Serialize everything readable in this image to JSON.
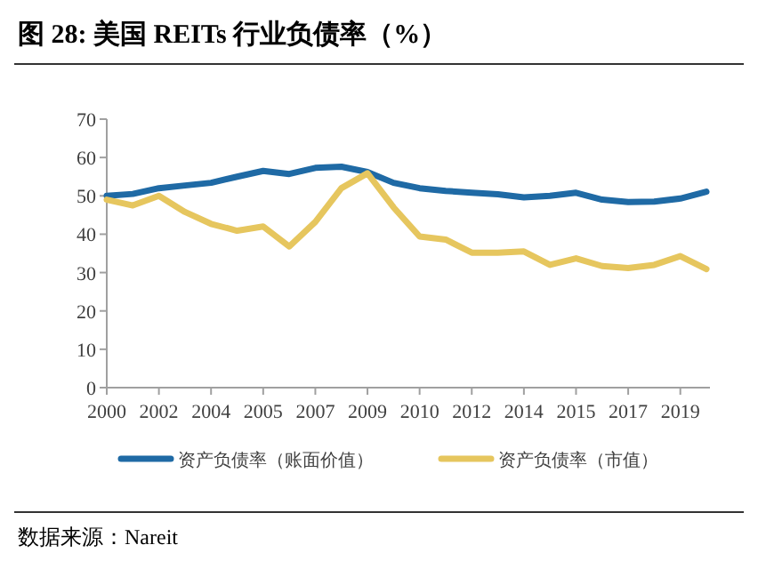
{
  "chart_data": {
    "type": "line",
    "title": "图 28:  美国 REITs 行业负债率（%）",
    "categories": [
      "2000",
      null,
      "2002",
      null,
      "2004",
      null,
      "2005",
      null,
      "2007",
      null,
      "2009",
      null,
      "2010",
      null,
      "2012",
      null,
      "2014",
      null,
      "2015",
      null,
      "2017",
      null,
      "2019",
      null
    ],
    "series": [
      {
        "name": "资产负债率（账面价值）",
        "color": "#1f6aa5",
        "values": [
          50,
          50.5,
          52,
          52.7,
          53.4,
          55,
          56.5,
          55.7,
          57.3,
          57.6,
          56.2,
          53.4,
          52,
          51.3,
          50.8,
          50.4,
          49.6,
          50,
          50.8,
          49,
          48.4,
          48.5,
          49.3,
          51.1
        ]
      },
      {
        "name": "资产负债率（市值）",
        "color": "#e6c65e",
        "values": [
          49,
          47.5,
          50,
          45.8,
          42.7,
          40.9,
          42,
          36.8,
          43.2,
          52,
          55.9,
          47,
          39.4,
          38.6,
          35.2,
          35.2,
          35.5,
          32,
          33.7,
          31.7,
          31.2,
          32,
          34.3,
          30.9
        ]
      }
    ],
    "ylim": [
      0,
      70
    ],
    "yticks": [
      0,
      10,
      20,
      30,
      40,
      50,
      60,
      70
    ],
    "legend": "bottom",
    "grid": false,
    "marker": "none",
    "line_style": "solid",
    "annotations": [
      "数据来源：Nareit"
    ]
  }
}
